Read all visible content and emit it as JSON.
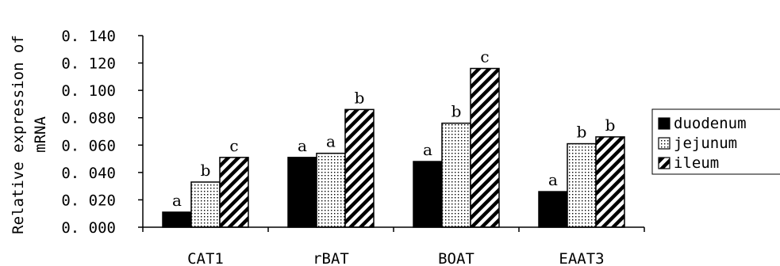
{
  "chart_data": {
    "type": "bar",
    "title": "",
    "xlabel": "",
    "ylabel_lines": [
      "Relative expression of",
      "mRNA"
    ],
    "categories": [
      "CAT1",
      "rBAT",
      "BOAT",
      "EAAT3"
    ],
    "ylim": [
      0,
      0.14
    ],
    "yticks": [
      "0.000",
      "0.020",
      "0.040",
      "0.060",
      "0.080",
      "0.100",
      "0.120",
      "0.140"
    ],
    "grid": false,
    "legend_position": "right",
    "series": [
      {
        "name": "duodenum",
        "pattern": "solid",
        "color": "#000000",
        "values": [
          0.011,
          0.051,
          0.048,
          0.026
        ],
        "labels": [
          "a",
          "a",
          "a",
          "a"
        ]
      },
      {
        "name": "jejunum",
        "pattern": "dots",
        "color": "#000000",
        "values": [
          0.033,
          0.054,
          0.076,
          0.061
        ],
        "labels": [
          "b",
          "a",
          "b",
          "b"
        ]
      },
      {
        "name": "ileum",
        "pattern": "diagonal",
        "color": "#000000",
        "values": [
          0.051,
          0.086,
          0.116,
          0.066
        ],
        "labels": [
          "c",
          "b",
          "c",
          "b"
        ]
      }
    ]
  }
}
